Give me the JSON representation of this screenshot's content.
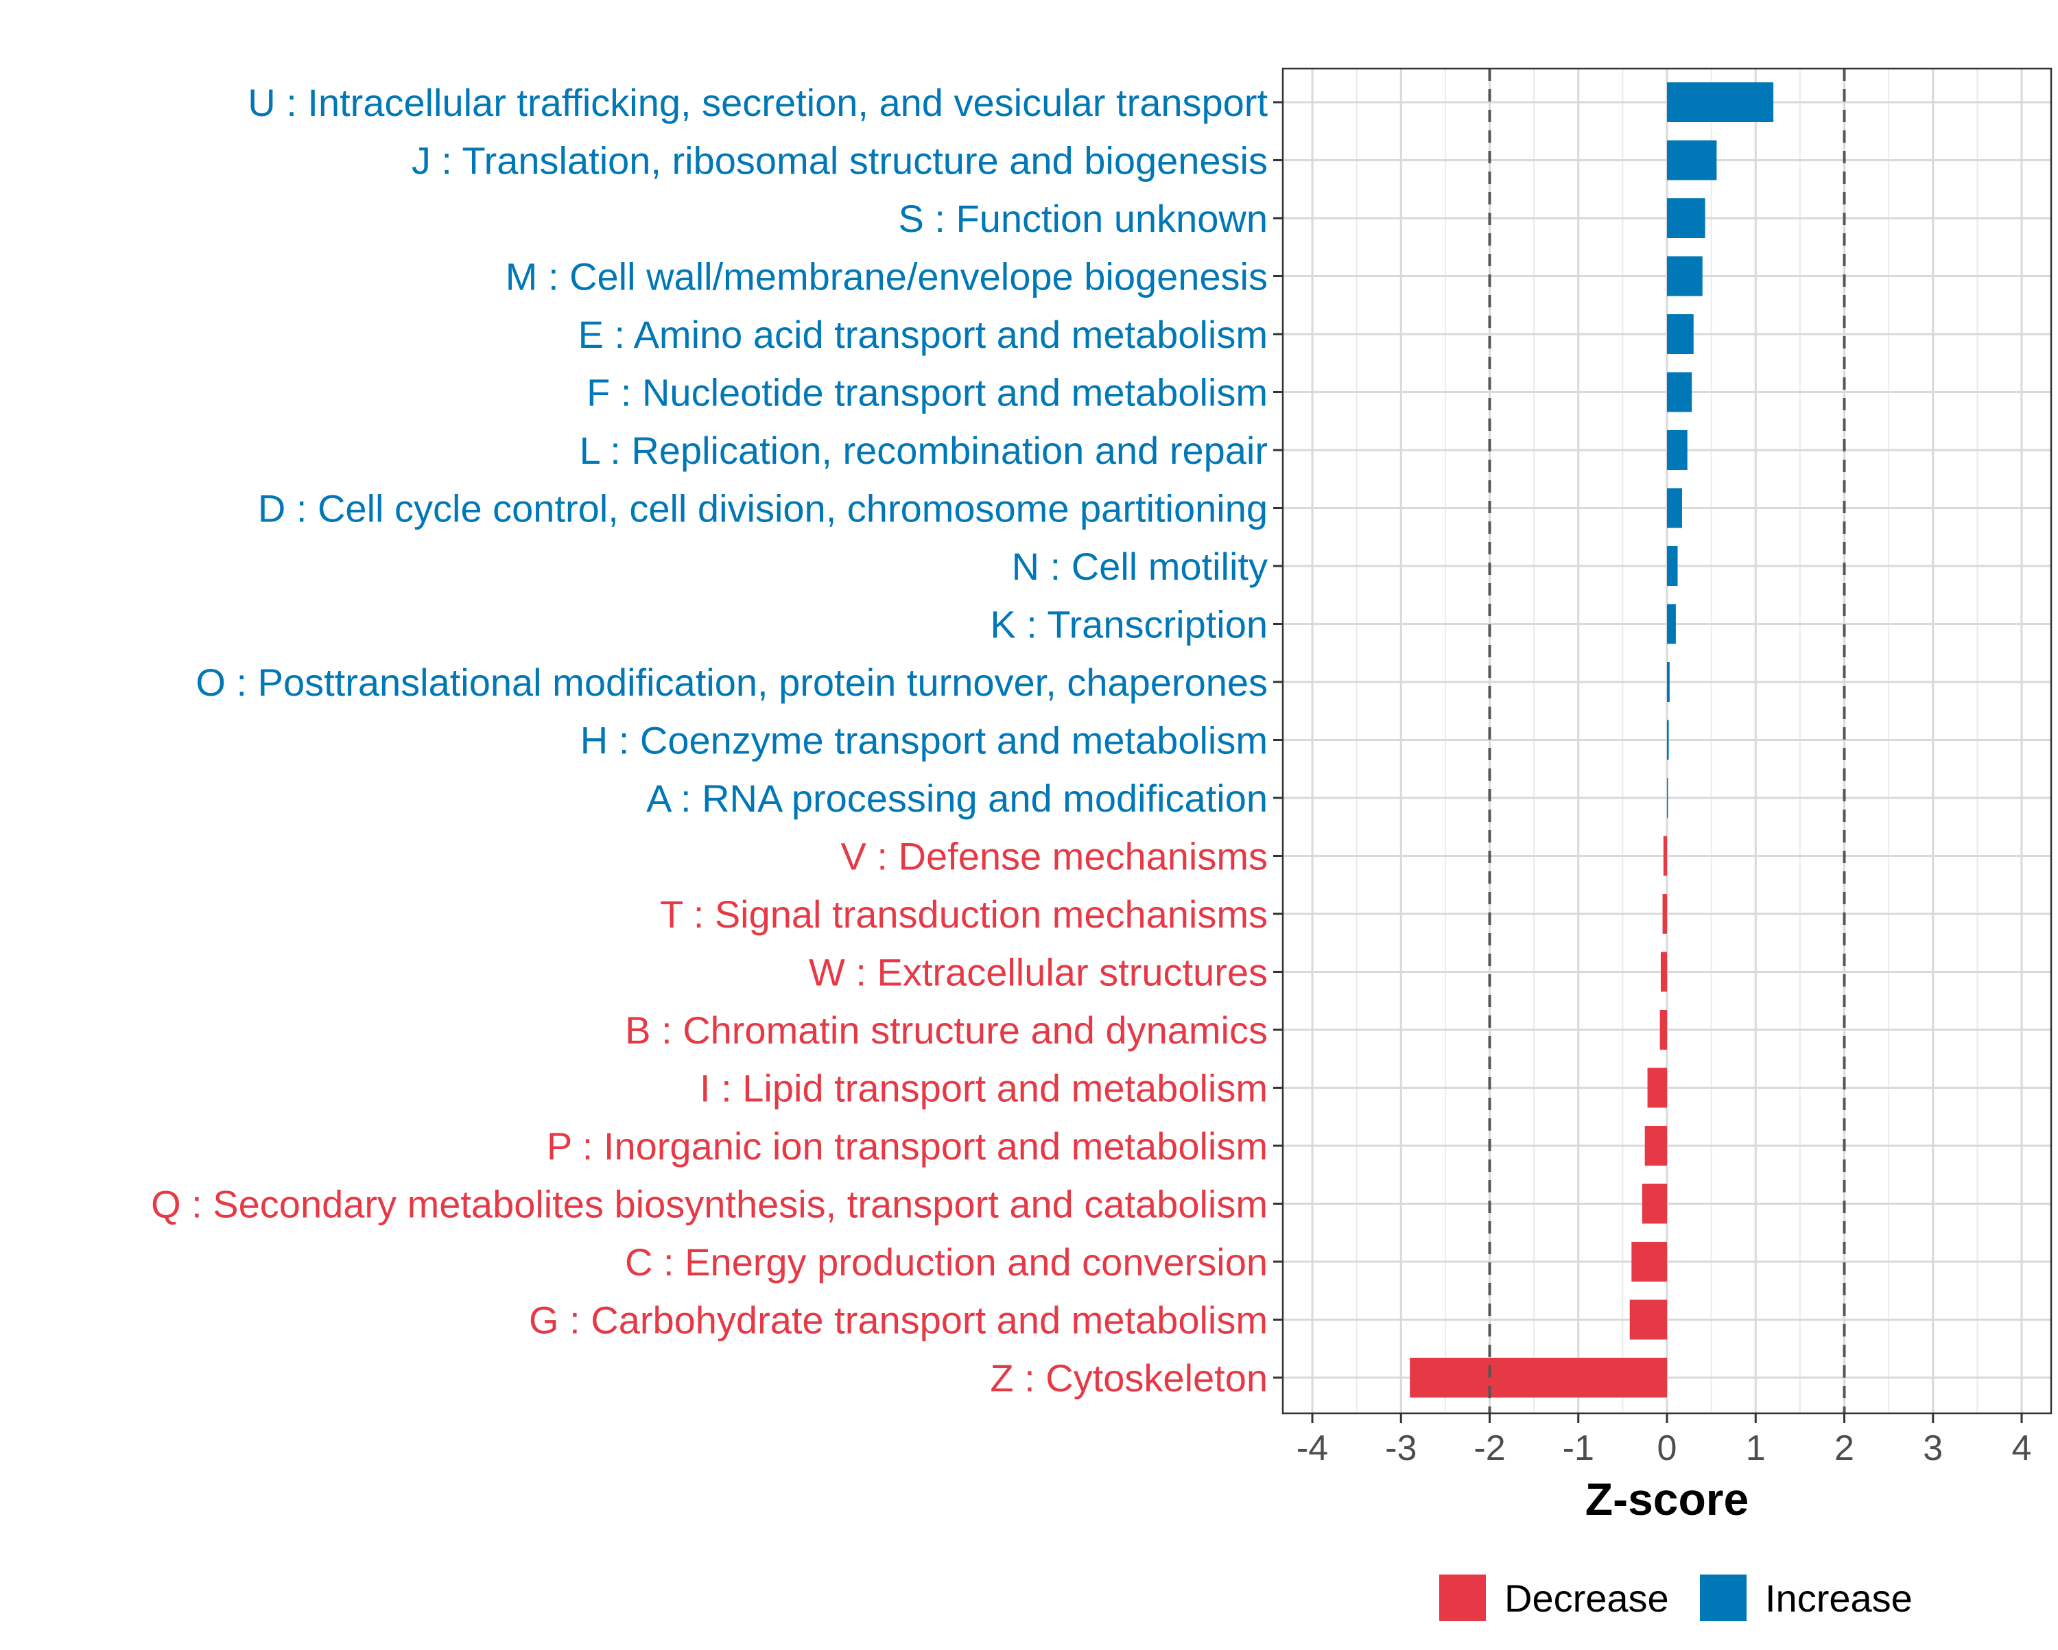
{
  "chart_data": {
    "type": "bar",
    "orientation": "horizontal",
    "xlabel": "Z-score",
    "xlim": [
      -4,
      4
    ],
    "x_ticks": [
      "-4",
      "-3",
      "-2",
      "-1",
      "0",
      "1",
      "2",
      "3",
      "4"
    ],
    "reference_lines": [
      -2,
      2
    ],
    "grid": true,
    "legend_position": "bottom",
    "legend": [
      {
        "key": "decrease",
        "label": "Decrease",
        "color": "#E63946"
      },
      {
        "key": "increase",
        "label": "Increase",
        "color": "#0077B6"
      }
    ],
    "categories": [
      {
        "label": "U : Intracellular trafficking, secretion, and vesicular transport",
        "value": 1.2,
        "direction": "increase"
      },
      {
        "label": "J : Translation, ribosomal structure and biogenesis",
        "value": 0.56,
        "direction": "increase"
      },
      {
        "label": "S : Function unknown",
        "value": 0.43,
        "direction": "increase"
      },
      {
        "label": "M : Cell wall/membrane/envelope biogenesis",
        "value": 0.4,
        "direction": "increase"
      },
      {
        "label": "E : Amino acid transport and metabolism",
        "value": 0.3,
        "direction": "increase"
      },
      {
        "label": "F : Nucleotide transport and metabolism",
        "value": 0.28,
        "direction": "increase"
      },
      {
        "label": "L : Replication, recombination and repair",
        "value": 0.23,
        "direction": "increase"
      },
      {
        "label": "D : Cell cycle control, cell division, chromosome partitioning",
        "value": 0.17,
        "direction": "increase"
      },
      {
        "label": "N : Cell motility",
        "value": 0.12,
        "direction": "increase"
      },
      {
        "label": "K : Transcription",
        "value": 0.1,
        "direction": "increase"
      },
      {
        "label": "O : Posttranslational modification, protein turnover, chaperones",
        "value": 0.03,
        "direction": "increase"
      },
      {
        "label": "H : Coenzyme transport and metabolism",
        "value": 0.02,
        "direction": "increase"
      },
      {
        "label": "A : RNA processing and modification",
        "value": 0.01,
        "direction": "increase"
      },
      {
        "label": "V : Defense mechanisms",
        "value": -0.04,
        "direction": "decrease"
      },
      {
        "label": "T : Signal transduction mechanisms",
        "value": -0.05,
        "direction": "decrease"
      },
      {
        "label": "W : Extracellular structures",
        "value": -0.07,
        "direction": "decrease"
      },
      {
        "label": "B : Chromatin structure and dynamics",
        "value": -0.08,
        "direction": "decrease"
      },
      {
        "label": "I : Lipid transport and metabolism",
        "value": -0.22,
        "direction": "decrease"
      },
      {
        "label": "P : Inorganic ion transport and metabolism",
        "value": -0.25,
        "direction": "decrease"
      },
      {
        "label": "Q : Secondary metabolites biosynthesis, transport and catabolism",
        "value": -0.28,
        "direction": "decrease"
      },
      {
        "label": "C : Energy production and conversion",
        "value": -0.4,
        "direction": "decrease"
      },
      {
        "label": "G : Carbohydrate transport and metabolism",
        "value": -0.42,
        "direction": "decrease"
      },
      {
        "label": "Z : Cytoskeleton",
        "value": -2.9,
        "direction": "decrease"
      }
    ]
  }
}
